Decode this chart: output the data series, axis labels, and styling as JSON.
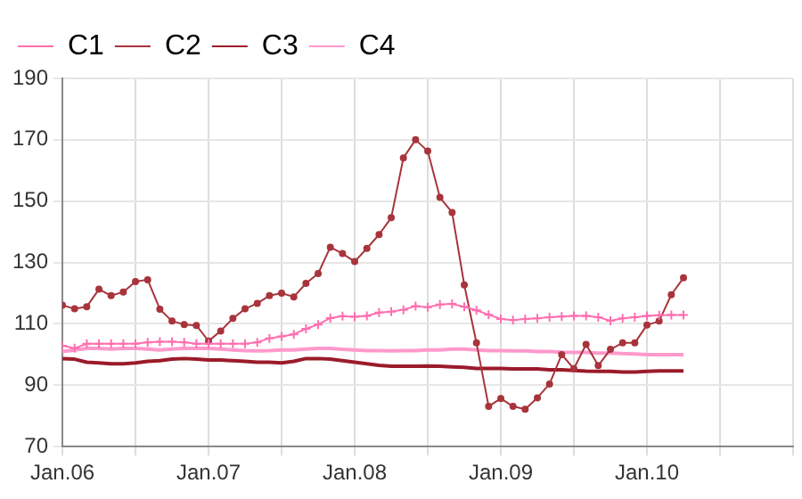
{
  "chart_data": {
    "type": "line",
    "xlim": [
      "2006-01",
      "2011-01"
    ],
    "xticks": [
      {
        "value": "2006-01",
        "label": "Jan.06"
      },
      {
        "value": "2006-07",
        "label": null
      },
      {
        "value": "2007-01",
        "label": "Jan.07"
      },
      {
        "value": "2007-07",
        "label": null
      },
      {
        "value": "2008-01",
        "label": "Jan.08"
      },
      {
        "value": "2008-07",
        "label": null
      },
      {
        "value": "2009-01",
        "label": "Jan.09"
      },
      {
        "value": "2009-07",
        "label": null
      },
      {
        "value": "2010-01",
        "label": "Jan.10"
      },
      {
        "value": "2010-07",
        "label": null
      },
      {
        "value": "2011-01",
        "label": null
      }
    ],
    "x": [
      "2006-01",
      "2006-02",
      "2006-03",
      "2006-04",
      "2006-05",
      "2006-06",
      "2006-07",
      "2006-08",
      "2006-09",
      "2006-10",
      "2006-11",
      "2006-12",
      "2007-01",
      "2007-02",
      "2007-03",
      "2007-04",
      "2007-05",
      "2007-06",
      "2007-07",
      "2007-08",
      "2007-09",
      "2007-10",
      "2007-11",
      "2007-12",
      "2008-01",
      "2008-02",
      "2008-03",
      "2008-04",
      "2008-05",
      "2008-06",
      "2008-07",
      "2008-08",
      "2008-09",
      "2008-10",
      "2008-11",
      "2008-12",
      "2009-01",
      "2009-02",
      "2009-03",
      "2009-04",
      "2009-05",
      "2009-06",
      "2009-07",
      "2009-08",
      "2009-09",
      "2009-10",
      "2009-11",
      "2009-12",
      "2010-01",
      "2010-02",
      "2010-03",
      "2010-04"
    ],
    "ylim": [
      70,
      190
    ],
    "yticks": [
      70,
      90,
      110,
      130,
      150,
      170,
      190
    ],
    "grid": true,
    "legend": "top left",
    "series": [
      {
        "name": "C1",
        "color": "#ff6fb0",
        "marker": "cross",
        "values": [
          102.9,
          102.1,
          103.5,
          103.5,
          103.5,
          103.5,
          103.5,
          104,
          104.2,
          104.2,
          104,
          103.5,
          103.5,
          103.5,
          103.5,
          103.5,
          104,
          105.3,
          105.9,
          106.6,
          108.4,
          109.8,
          111.9,
          112.5,
          112.3,
          112.6,
          113.7,
          114,
          114.6,
          115.8,
          115.4,
          116.3,
          116.5,
          115.6,
          114.4,
          113,
          111.6,
          111.2,
          111.6,
          111.8,
          112.2,
          112.4,
          112.6,
          112.6,
          112.2,
          111,
          111.8,
          112.2,
          112.6,
          112.8,
          112.9,
          112.9
        ]
      },
      {
        "name": "C2",
        "color": "#a8343c",
        "marker": "circle",
        "values": [
          116.1,
          114.9,
          115.6,
          121.3,
          119.2,
          120.4,
          123.8,
          124.4,
          114.8,
          110.9,
          109.8,
          109.5,
          104.4,
          107.7,
          111.8,
          114.9,
          116.7,
          119.2,
          120,
          118.8,
          123.2,
          126.4,
          135,
          132.9,
          130.3,
          134.6,
          139.1,
          144.6,
          164.1,
          170,
          166.3,
          151.2,
          146.3,
          122.7,
          103.8,
          83.1,
          85.7,
          83.1,
          82.2,
          85.9,
          90.4,
          100,
          95.4,
          103.3,
          96.4,
          101.7,
          103.8,
          103.8,
          109.6,
          110.9,
          119.5,
          125
        ]
      },
      {
        "name": "C3",
        "color": "#9b1b2a",
        "marker": "none",
        "values": [
          98.7,
          98.5,
          97.5,
          97.3,
          97,
          97,
          97.3,
          97.8,
          98,
          98.5,
          98.7,
          98.5,
          98.2,
          98.2,
          98,
          97.8,
          97.5,
          97.5,
          97.3,
          97.8,
          98.7,
          98.7,
          98.5,
          98,
          97.5,
          97,
          96.5,
          96.2,
          96.2,
          96.2,
          96.3,
          96.2,
          96,
          95.8,
          95.5,
          95.5,
          95.5,
          95.3,
          95.3,
          95.3,
          95,
          95,
          94.8,
          94.6,
          94.5,
          94.5,
          94.3,
          94.3,
          94.5,
          94.7,
          94.7,
          94.7
        ]
      },
      {
        "name": "C4",
        "color": "#ff99cc",
        "marker": "none",
        "values": [
          101,
          101.5,
          102,
          102,
          101.8,
          102,
          102,
          101.8,
          101.5,
          101.8,
          102,
          102,
          102,
          101.8,
          101.5,
          101.3,
          101.2,
          101.3,
          101.5,
          101.5,
          101.8,
          102,
          102,
          101.7,
          101.5,
          101.3,
          101.3,
          101.2,
          101.3,
          101.3,
          101.5,
          101.5,
          101.8,
          101.8,
          101.5,
          101.3,
          101.3,
          101.2,
          101.2,
          101,
          101,
          100.8,
          100.7,
          100.7,
          100.5,
          100.5,
          100.3,
          100.2,
          100,
          100,
          100,
          100
        ]
      }
    ]
  }
}
